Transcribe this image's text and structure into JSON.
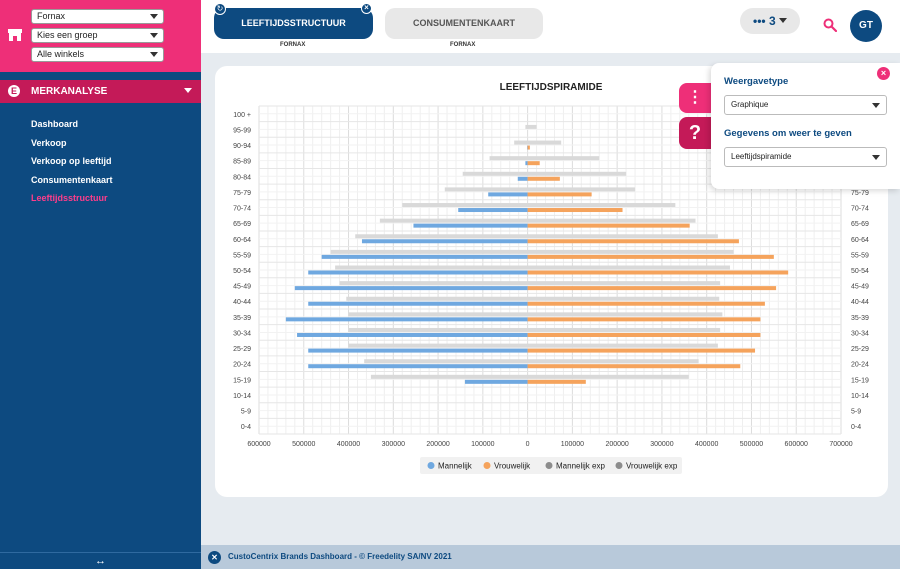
{
  "sidebar": {
    "selects": [
      {
        "value": "Fornax"
      },
      {
        "value": "Kies een groep"
      },
      {
        "value": "Alle winkels"
      }
    ],
    "section_label": "MERKANALYSE",
    "section_icon": "E",
    "items": [
      {
        "label": "Dashboard",
        "active": false
      },
      {
        "label": "Verkoop",
        "active": false
      },
      {
        "label": "Verkoop op leeftijd",
        "active": false
      },
      {
        "label": "Consumentenkaart",
        "active": false
      },
      {
        "label": "Leeftijdsstructuur",
        "active": true
      }
    ],
    "resize_handle": "↔"
  },
  "topbar": {
    "tabs": [
      {
        "label": "LEEFTIJDSSTRUCTUUR",
        "sub": "FORNAX",
        "active": true
      },
      {
        "label": "CONSUMENTENKAART",
        "sub": "FORNAX",
        "active": false
      }
    ],
    "more_label": "••• 3",
    "avatar": "GT"
  },
  "popover": {
    "display_type_label": "Weergavetype",
    "display_type_value": "Graphique",
    "data_label": "Gegevens om weer te geven",
    "data_value": "Leeftijdspiramide"
  },
  "side_buttons": {
    "menu": "⋮",
    "help": "?"
  },
  "footer": {
    "text": "CustoCentrix Brands Dashboard - © Freedelity SA/NV 2021"
  },
  "colors": {
    "male": "#6fa8e0",
    "female": "#f5a35c",
    "exp": "#d9d9d9",
    "brand_pink": "#ee2f78",
    "brand_blue": "#0d4a80"
  },
  "chart_data": {
    "type": "bar",
    "orientation": "horizontal",
    "title": "LEEFTIJDSPIRAMIDE",
    "categories": [
      "0-4",
      "5-9",
      "10-14",
      "15-19",
      "20-24",
      "25-29",
      "30-34",
      "35-39",
      "40-44",
      "45-49",
      "50-54",
      "55-59",
      "60-64",
      "65-69",
      "70-74",
      "75-79",
      "80-84",
      "85-89",
      "90-94",
      "95-99",
      "100 +"
    ],
    "x_tick_labels": [
      "600000",
      "500000",
      "400000",
      "300000",
      "200000",
      "100000",
      "0",
      "100000",
      "200000",
      "300000",
      "400000",
      "500000",
      "600000",
      "700000"
    ],
    "xlim": [
      -600000,
      700000
    ],
    "series": [
      {
        "name": "Mannelijk",
        "color": "#6fa8e0",
        "values": [
          0,
          0,
          0,
          -140000,
          -490000,
          -490000,
          -515000,
          -540000,
          -490000,
          -520000,
          -490000,
          -460000,
          -370000,
          -255000,
          -155000,
          -88000,
          -22000,
          -5000,
          -1000,
          0,
          0
        ]
      },
      {
        "name": "Vrouwelijk",
        "color": "#f5a35c",
        "values": [
          0,
          0,
          0,
          130000,
          475000,
          508000,
          520000,
          520000,
          530000,
          555000,
          582000,
          550000,
          472000,
          362000,
          212000,
          143000,
          72000,
          27000,
          5000,
          0,
          0
        ]
      },
      {
        "name": "Mannelijk exp",
        "color": "#d9d9d9",
        "values": [
          0,
          0,
          0,
          -350000,
          -365000,
          -400000,
          -400000,
          -400000,
          -405000,
          -420000,
          -430000,
          -440000,
          -385000,
          -330000,
          -280000,
          -185000,
          -145000,
          -85000,
          -30000,
          -5000,
          0
        ]
      },
      {
        "name": "Vrouwelijk exp",
        "color": "#d9d9d9",
        "values": [
          0,
          0,
          0,
          360000,
          382000,
          425000,
          430000,
          435000,
          428000,
          430000,
          452000,
          460000,
          425000,
          375000,
          330000,
          240000,
          220000,
          160000,
          75000,
          20000,
          0
        ]
      }
    ],
    "legend": [
      {
        "name": "Mannelijk",
        "color": "#6fa8e0"
      },
      {
        "name": "Vrouwelijk",
        "color": "#f5a35c"
      },
      {
        "name": "Mannelijk exp",
        "color": "#8c8c8c"
      },
      {
        "name": "Vrouwelijk exp",
        "color": "#8c8c8c"
      }
    ],
    "legend_position": "bottom-center",
    "grid": true
  }
}
